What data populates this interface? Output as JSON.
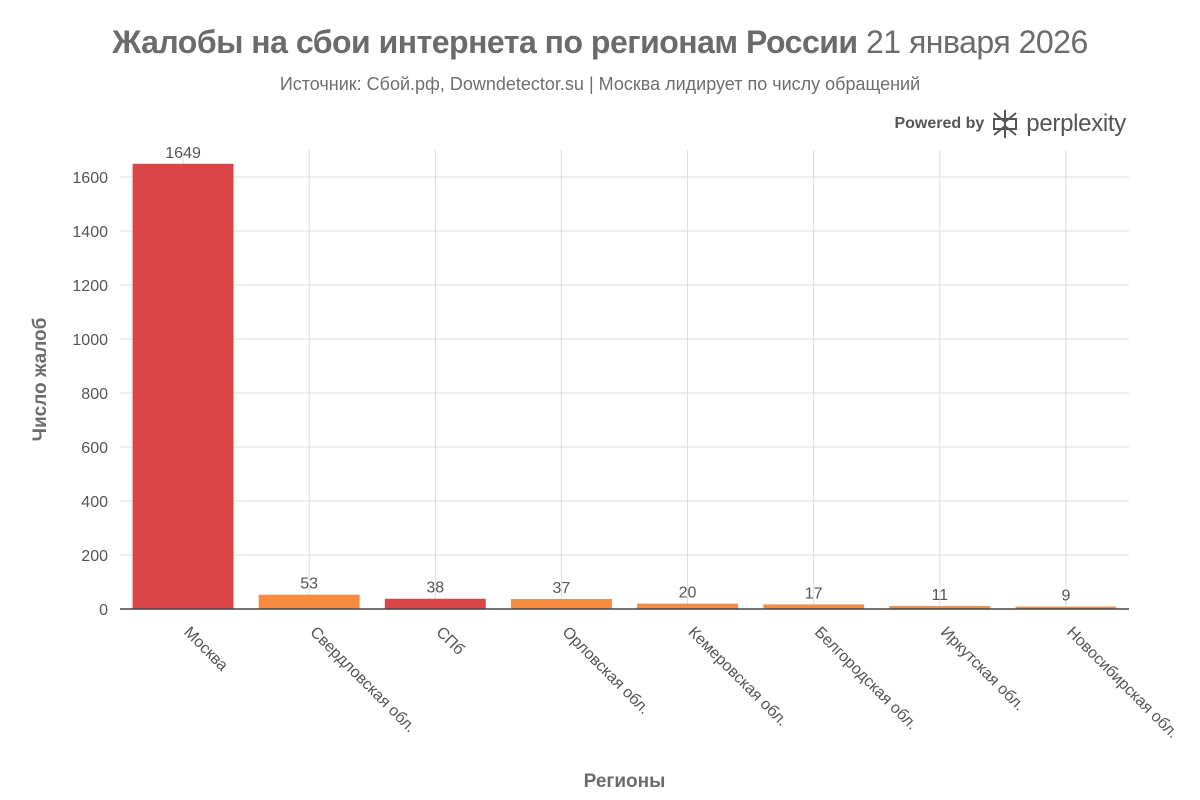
{
  "header": {
    "title_bold": "Жалобы на сбои интернета по регионам России",
    "title_rest": "21 января 2026",
    "subtitle": "Источник: Сбой.рф, Downdetector.su | Москва лидирует по числу обращений"
  },
  "branding": {
    "powered_by": "Powered by",
    "name": "perplexity",
    "logo_icon": "perplexity-logo-icon"
  },
  "chart_data": {
    "type": "bar",
    "xlabel": "Регионы",
    "ylabel": "Число жалоб",
    "ylim": [
      0,
      1700
    ],
    "yticks": [
      0,
      200,
      400,
      600,
      800,
      1000,
      1200,
      1400,
      1600
    ],
    "grid": true,
    "categories": [
      "Москва",
      "Свердловская обл.",
      "СПб",
      "Орловская обл.",
      "Кемеровская обл.",
      "Белгородская обл.",
      "Иркутская обл.",
      "Новосибирская обл."
    ],
    "values": [
      1649,
      53,
      38,
      37,
      20,
      17,
      11,
      9
    ],
    "bar_colors": [
      "#dc4548",
      "#f78c40",
      "#dc4548",
      "#f78c40",
      "#f78c40",
      "#f78c40",
      "#f78c40",
      "#f78c40"
    ],
    "data_labels": [
      "1649",
      "53",
      "38",
      "37",
      "20",
      "17",
      "11",
      "9"
    ]
  }
}
